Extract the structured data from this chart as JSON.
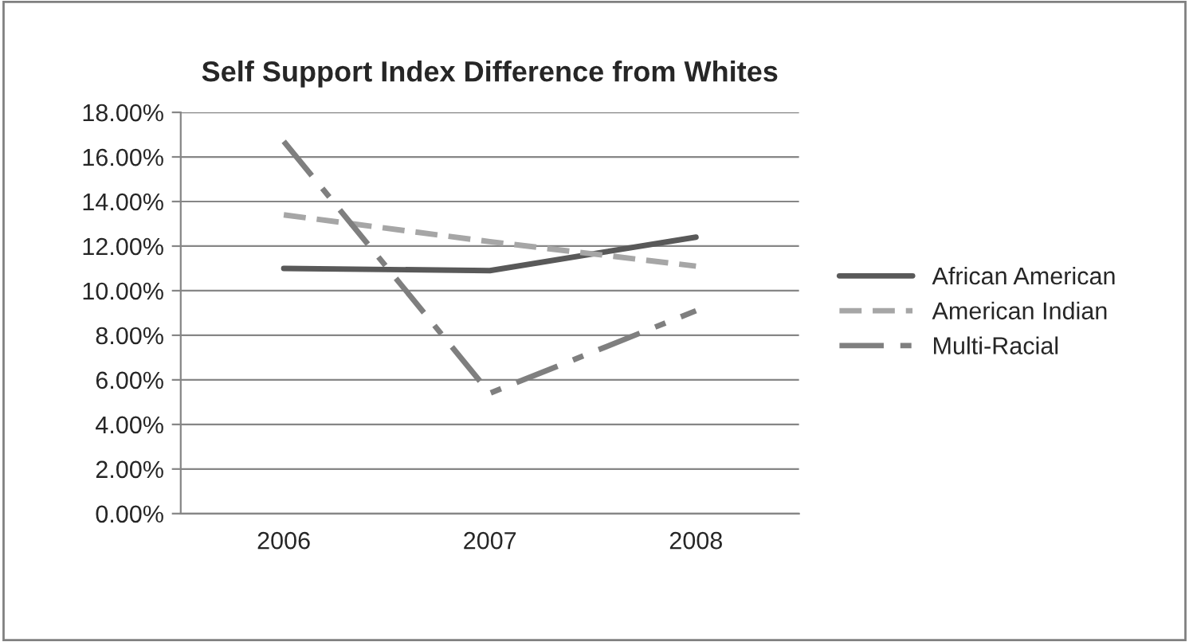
{
  "chart_data": {
    "type": "line",
    "title": "Self Support Index Difference from Whites",
    "categories": [
      "2006",
      "2007",
      "2008"
    ],
    "series": [
      {
        "name": "African American",
        "color": "#595959",
        "line_style": "solid",
        "values": [
          11.0,
          10.9,
          12.4
        ]
      },
      {
        "name": "American Indian",
        "color": "#a6a6a6",
        "line_style": "dashed",
        "values": [
          13.4,
          12.2,
          11.1
        ]
      },
      {
        "name": "Multi-Racial",
        "color": "#7f7f7f",
        "line_style": "dashdot",
        "values": [
          16.7,
          5.4,
          9.1
        ]
      }
    ],
    "ylim": [
      0,
      18
    ],
    "yticks": [
      {
        "value": 0,
        "label": "0.00%"
      },
      {
        "value": 2,
        "label": "2.00%"
      },
      {
        "value": 4,
        "label": "4.00%"
      },
      {
        "value": 6,
        "label": "6.00%"
      },
      {
        "value": 8,
        "label": "8.00%"
      },
      {
        "value": 10,
        "label": "10.00%"
      },
      {
        "value": 12,
        "label": "12.00%"
      },
      {
        "value": 14,
        "label": "14.00%"
      },
      {
        "value": 16,
        "label": "16.00%"
      },
      {
        "value": 18,
        "label": "18.00%"
      }
    ],
    "grid": "y",
    "legend": "right",
    "marker": "none"
  }
}
